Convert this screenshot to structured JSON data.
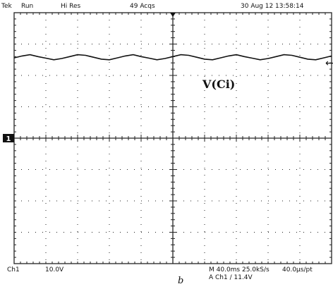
{
  "status_bar": {
    "brand": "Tek",
    "run_state": "Run",
    "acq_mode": "Hi Res",
    "acquisitions": "49 Acqs",
    "datetime": "30 Aug 12 13:58:14"
  },
  "scope_readout": {
    "channel": "Ch1",
    "volts_per_div": "10.0V",
    "timebase": "M 40.0ms 25.0kS/s",
    "sample_interval": "40.0µs/pt",
    "trigger": "A  Ch1  ∕  11.4V"
  },
  "markers": {
    "channel_marker": "1",
    "trigger_level_arrow": "←"
  },
  "trace": {
    "label": "V(Ci)"
  },
  "figure_label": "b",
  "chart_data": {
    "type": "line",
    "grid": true,
    "x_divisions": 10,
    "y_divisions": 8,
    "y_scale": "10.0 V/div",
    "time_scale": "40.0 ms/div",
    "ground_level_div": 0,
    "series": [
      {
        "name": "V(Ci)",
        "y_div": [
          2.56,
          2.62,
          2.66,
          2.6,
          2.55,
          2.5,
          2.54,
          2.6,
          2.66,
          2.64,
          2.58,
          2.52,
          2.5,
          2.56,
          2.62,
          2.66,
          2.6,
          2.55,
          2.5,
          2.54,
          2.6,
          2.66,
          2.64,
          2.58,
          2.52,
          2.5,
          2.56,
          2.62,
          2.66,
          2.6,
          2.55,
          2.5,
          2.54,
          2.6,
          2.66,
          2.64,
          2.58,
          2.52,
          2.5,
          2.56,
          2.62
        ]
      }
    ]
  },
  "colors": {
    "background": "#ffffff",
    "trace": "#111111",
    "grid": "#222222"
  }
}
